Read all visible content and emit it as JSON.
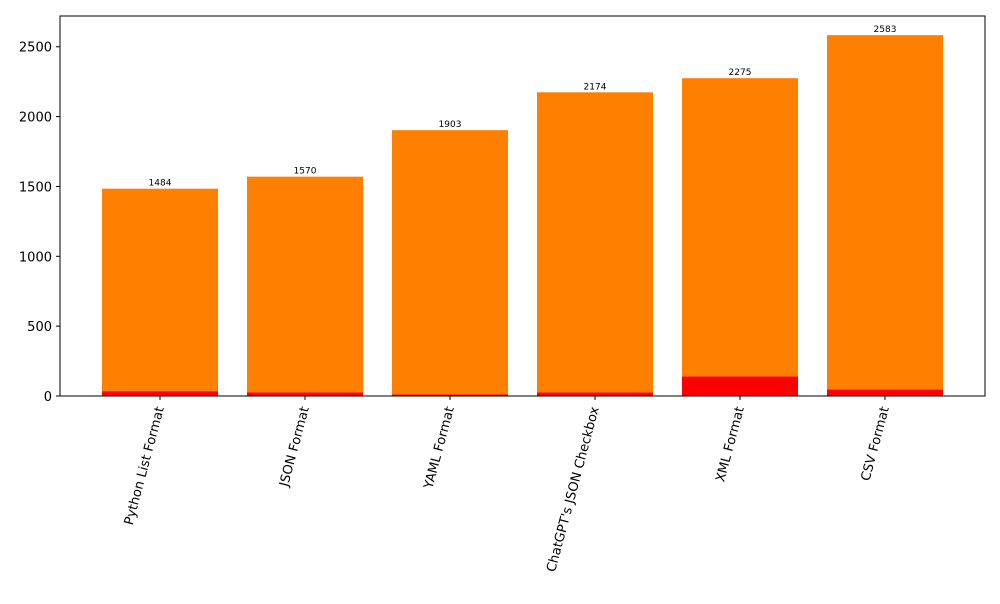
{
  "chart_data": {
    "type": "bar",
    "stacked": true,
    "categories": [
      "Python List Format",
      "JSON Format",
      "YAML Format",
      "ChatGPT's JSON Checkbox",
      "XML Format",
      "CSV Format"
    ],
    "series": [
      {
        "color": "#ff0000",
        "values": [
          35,
          25,
          12,
          25,
          140,
          48
        ]
      },
      {
        "color": "#ff8000",
        "values": [
          1449,
          1545,
          1891,
          2149,
          2135,
          2535
        ]
      }
    ],
    "totals": [
      1484,
      1570,
      1903,
      2174,
      2275,
      2583
    ],
    "data_labels": [
      "1484",
      "1570",
      "1903",
      "2174",
      "2275",
      "2583"
    ],
    "ylim": [
      0,
      2720
    ],
    "y_ticks": [
      0,
      500,
      1000,
      1500,
      2000,
      2500
    ],
    "y_tick_labels": [
      "0",
      "500",
      "1000",
      "1500",
      "2000",
      "2500"
    ],
    "grid": false,
    "x_tick_rotation_deg": 75
  }
}
